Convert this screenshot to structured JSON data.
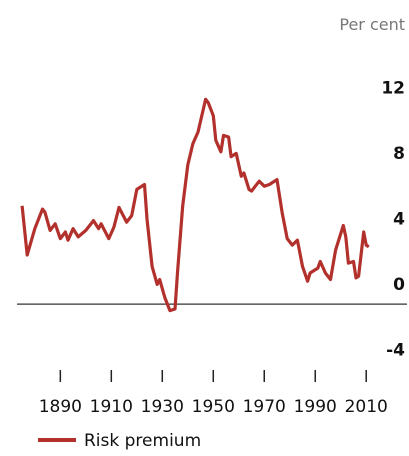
{
  "chart_data": {
    "type": "line",
    "y_unit": "Per cent",
    "x": [
      1875,
      1877,
      1880,
      1883,
      1884,
      1886,
      1888,
      1890,
      1892,
      1893,
      1895,
      1897,
      1900,
      1903,
      1905,
      1906,
      1909,
      1911,
      1913,
      1916,
      1918,
      1920,
      1923,
      1924,
      1926,
      1928,
      1929,
      1931,
      1933,
      1935,
      1936,
      1938,
      1940,
      1942,
      1944,
      1947,
      1948,
      1950,
      1951,
      1953,
      1954,
      1956,
      1957,
      1959,
      1961,
      1962,
      1964,
      1965,
      1968,
      1970,
      1972,
      1975,
      1977,
      1979,
      1981,
      1983,
      1985,
      1987,
      1988,
      1991,
      1992,
      1994,
      1996,
      1998,
      2001,
      2002,
      2003,
      2005,
      2006,
      2007,
      2009,
      2010,
      2011
    ],
    "series": [
      {
        "name": "Risk premium",
        "color": "#b3312c",
        "values": [
          6.0,
          3.0,
          4.6,
          5.8,
          5.6,
          4.5,
          4.9,
          4.0,
          4.4,
          3.9,
          4.6,
          4.1,
          4.5,
          5.1,
          4.6,
          4.9,
          4.0,
          4.7,
          5.9,
          5.0,
          5.4,
          7.0,
          7.3,
          5.2,
          2.3,
          1.2,
          1.5,
          0.4,
          -0.4,
          -0.3,
          2.0,
          6.0,
          8.5,
          9.8,
          10.5,
          12.5,
          12.3,
          11.5,
          10.0,
          9.3,
          10.3,
          10.2,
          9.0,
          9.2,
          7.8,
          8.0,
          7.0,
          6.9,
          7.5,
          7.2,
          7.3,
          7.6,
          5.6,
          4.0,
          3.6,
          3.9,
          2.3,
          1.4,
          1.9,
          2.2,
          2.6,
          1.9,
          1.5,
          3.3,
          4.8,
          4.1,
          2.5,
          2.6,
          1.6,
          1.7,
          4.4,
          3.6,
          3.5
        ]
      }
    ],
    "xlim": [
      1873,
      2026
    ],
    "xticks": [
      1890,
      1910,
      1930,
      1950,
      1970,
      1990,
      2010
    ],
    "ylim": [
      -5,
      16
    ],
    "yticks": [
      -4,
      0,
      4,
      8,
      12
    ]
  }
}
